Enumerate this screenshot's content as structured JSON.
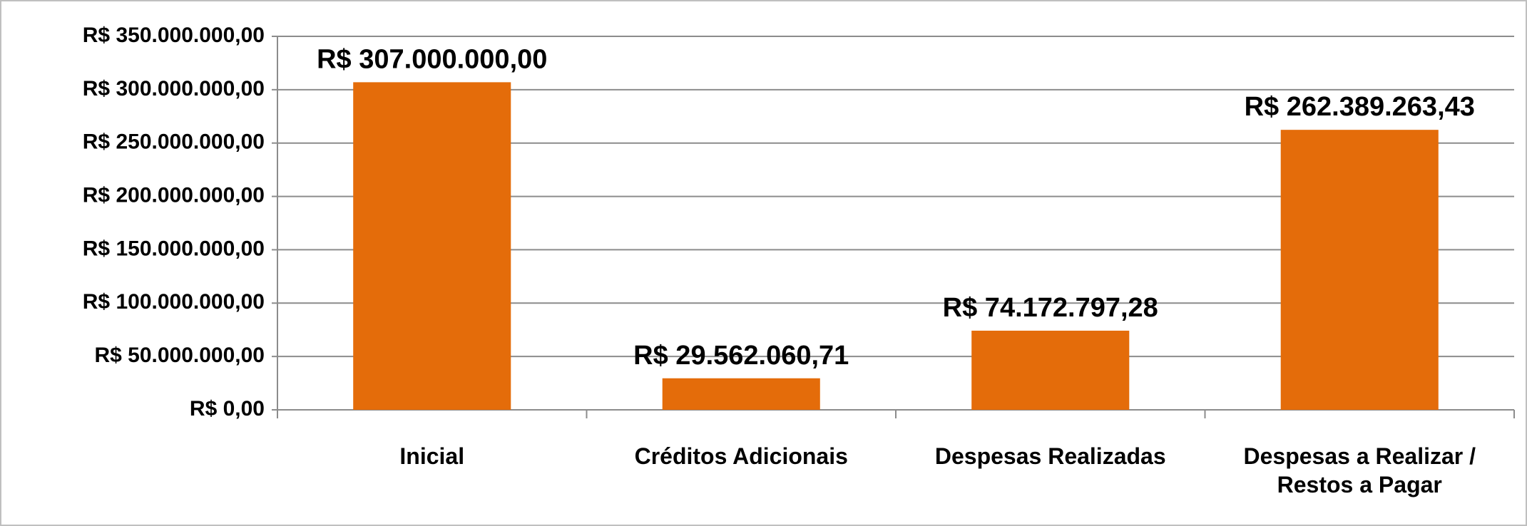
{
  "chart_data": {
    "type": "bar",
    "categories": [
      "Inicial",
      "Créditos Adicionais",
      "Despesas Realizadas",
      "Despesas a Realizar / Restos a Pagar"
    ],
    "values": [
      307000000,
      29562060.71,
      74172797.28,
      262389263.43
    ],
    "value_labels": [
      "R$ 307.000.000,00",
      "R$ 29.562.060,71",
      "R$ 74.172.797,28",
      "R$ 262.389.263,43"
    ],
    "color": "#e46c0a",
    "ylim": [
      0,
      350000000
    ],
    "yticks": [
      {
        "value": 0,
        "label": "R$ 0,00"
      },
      {
        "value": 50000000,
        "label": "R$ 50.000.000,00"
      },
      {
        "value": 100000000,
        "label": "R$ 100.000.000,00"
      },
      {
        "value": 150000000,
        "label": "R$ 150.000.000,00"
      },
      {
        "value": 200000000,
        "label": "R$ 200.000.000,00"
      },
      {
        "value": 250000000,
        "label": "R$ 250.000.000,00"
      },
      {
        "value": 300000000,
        "label": "R$ 300.000.000,00"
      },
      {
        "value": 350000000,
        "label": "R$ 350.000.000,00"
      }
    ],
    "grid": true
  }
}
